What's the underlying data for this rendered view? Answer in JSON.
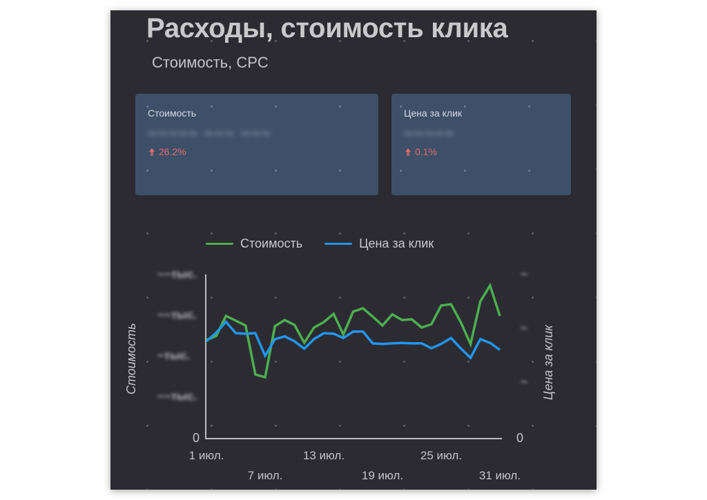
{
  "header": {
    "title": "Расходы, стоимость клика",
    "subtitle": "Стоимость, CPC"
  },
  "cards": [
    {
      "label": "Стоимость",
      "value_hidden": "~~~~~ ~~~ ~~~",
      "delta": "26.2%",
      "delta_direction": "up"
    },
    {
      "label": "Цена за клик",
      "value_hidden": "~~~~~",
      "delta": "0.1%",
      "delta_direction": "up"
    }
  ],
  "colors": {
    "background": "#2c2b32",
    "card": "#3d5068",
    "cost_series": "#4caf50",
    "cpc_series": "#2196f3",
    "delta_up": "#e36a6a",
    "axis": "#bdbdc0"
  },
  "chart_data": {
    "type": "line",
    "title": "",
    "legend": [
      "Стоимость",
      "Цена за клик"
    ],
    "legend_position": "top",
    "xlabel": "",
    "ylabel": "Стоимость",
    "ylabel_right": "Цена за клик",
    "x_tick_labels_row1": [
      "1 июл.",
      "13 июл.",
      "25 июл."
    ],
    "x_tick_labels_row2": [
      "7 июл.",
      "19 июл.",
      "31 июл."
    ],
    "x_tick_days_row1": [
      1,
      13,
      25
    ],
    "x_tick_days_row2": [
      7,
      19,
      31
    ],
    "y_ticks_left_blurred": [
      "~~тыс.",
      "~~тыс.",
      "~тыс.",
      "~~тыс."
    ],
    "y_ticks_left_values": [
      10000,
      7500,
      5000,
      2500
    ],
    "y_ticks_right_blurred": [
      "~",
      "~",
      "~"
    ],
    "y_ticks_right_values": [
      3,
      2,
      1
    ],
    "y_zero_label": "0",
    "ylim_left": [
      0,
      10000
    ],
    "ylim_right": [
      0,
      3
    ],
    "grid": false,
    "x": [
      1,
      2,
      3,
      4,
      5,
      6,
      7,
      8,
      9,
      10,
      11,
      12,
      13,
      14,
      15,
      16,
      17,
      18,
      19,
      20,
      21,
      22,
      23,
      24,
      25,
      26,
      27,
      28,
      29,
      30,
      31
    ],
    "series": [
      {
        "name": "Стоимость",
        "axis": "left",
        "color": "#4caf50",
        "values": [
          6060,
          6310,
          7540,
          7250,
          6950,
          3940,
          3770,
          6910,
          7290,
          6990,
          5890,
          6820,
          7160,
          7670,
          6400,
          7800,
          8010,
          7500,
          6950,
          7630,
          7290,
          7330,
          6820,
          7030,
          8180,
          8260,
          7160,
          5810,
          8430,
          9410,
          7540
        ]
      },
      {
        "name": "Цена за клик",
        "axis": "right",
        "color": "#2196f3",
        "values": [
          1.81,
          1.97,
          2.17,
          1.96,
          1.95,
          1.96,
          1.54,
          1.85,
          1.9,
          1.81,
          1.67,
          1.85,
          1.96,
          1.95,
          1.87,
          1.99,
          1.99,
          1.77,
          1.76,
          1.77,
          1.78,
          1.77,
          1.77,
          1.68,
          1.76,
          1.87,
          1.68,
          1.5,
          1.85,
          1.78,
          1.65
        ]
      }
    ]
  }
}
